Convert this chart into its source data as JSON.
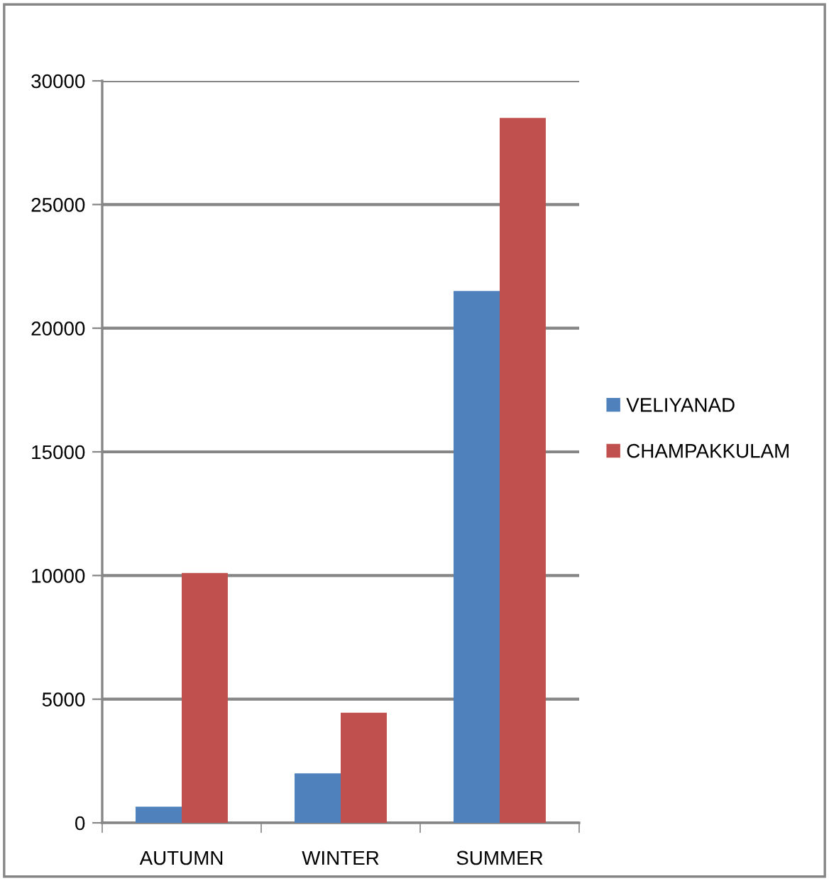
{
  "chart_data": {
    "type": "bar",
    "categories": [
      "AUTUMN",
      "WINTER",
      "SUMMER"
    ],
    "series": [
      {
        "name": "VELIYANAD",
        "color": "#4f81bd",
        "values": [
          650,
          2000,
          21500
        ]
      },
      {
        "name": "CHAMPAKKULAM",
        "color": "#c0504d",
        "values": [
          10100,
          4450,
          28500
        ]
      }
    ],
    "ylim": [
      0,
      30000
    ],
    "yticks": [
      0,
      5000,
      10000,
      15000,
      20000,
      25000,
      30000
    ],
    "grid": "y",
    "legend": "right"
  }
}
